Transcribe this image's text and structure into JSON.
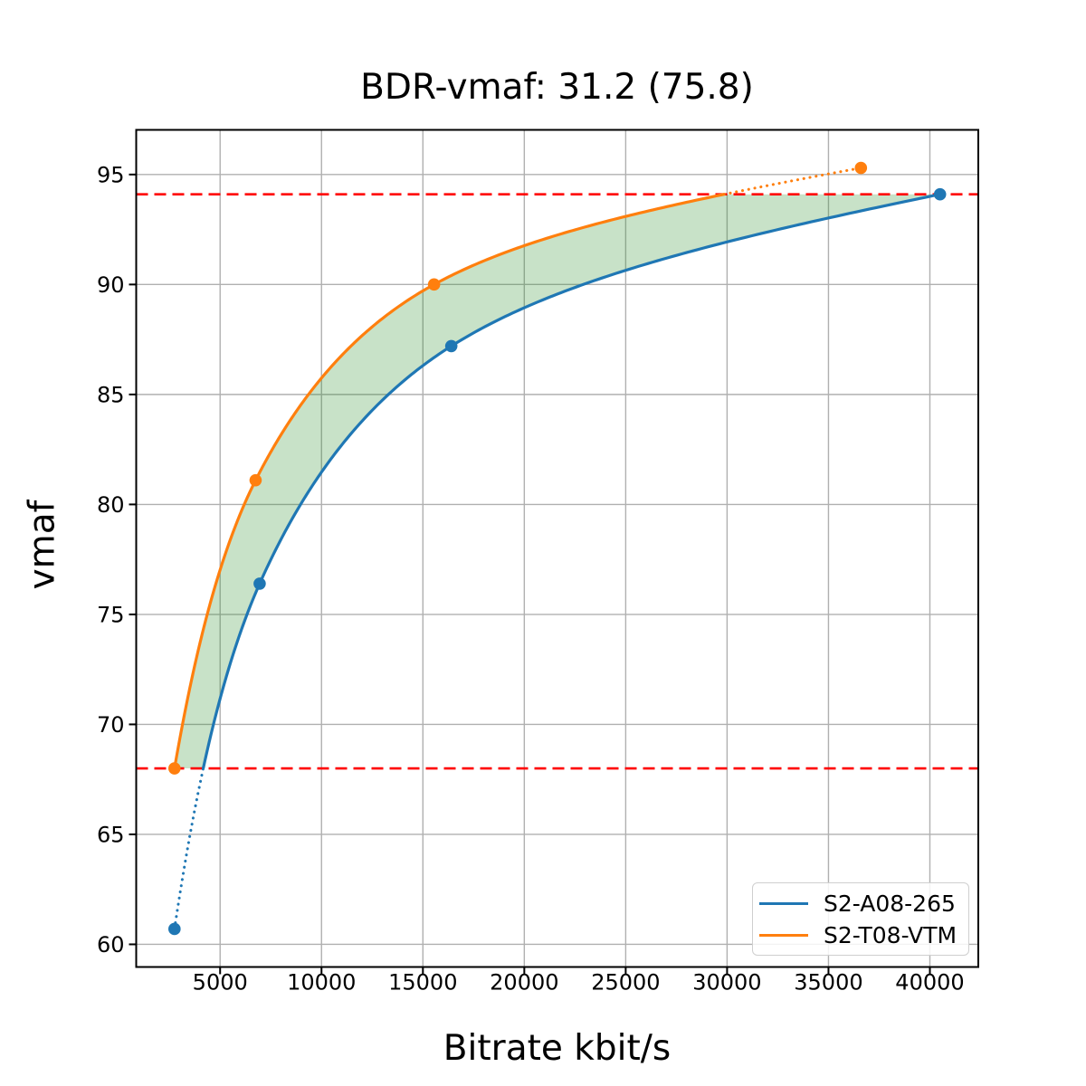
{
  "chart_data": {
    "type": "line",
    "title": "BDR-vmaf: 31.2 (75.8)",
    "xlabel": "Bitrate kbit/s",
    "ylabel": "vmaf",
    "xlim": [
      862,
      42388
    ],
    "ylim": [
      58.97,
      97.03
    ],
    "xticks": [
      5000,
      10000,
      15000,
      20000,
      25000,
      30000,
      35000,
      40000
    ],
    "yticks": [
      60,
      65,
      70,
      75,
      80,
      85,
      90,
      95
    ],
    "grid": true,
    "grid_color": "#b0b0b0",
    "axes_color": "#000000",
    "background": "#ffffff",
    "legend_position": "lower right",
    "series": [
      {
        "name": "S2-A08-265",
        "color": "#1f77b4",
        "points": [
          [
            2750,
            60.7
          ],
          [
            6950,
            76.4
          ],
          [
            16400,
            87.2
          ],
          [
            40500,
            94.1
          ]
        ]
      },
      {
        "name": "S2-T08-VTM",
        "color": "#ff7f0e",
        "points": [
          [
            2750,
            68.0
          ],
          [
            6750,
            81.1
          ],
          [
            15550,
            90.0
          ],
          [
            36600,
            95.3
          ]
        ]
      }
    ],
    "overlap_bounds": {
      "lower_vmaf": 68.0,
      "upper_vmaf": 94.1,
      "line_color": "#ff0000",
      "line_style": "dashed"
    },
    "shaded_region": {
      "color": "#228b22",
      "opacity": 0.25,
      "description": "BD-rate area between curves within vmaf overlap"
    }
  }
}
